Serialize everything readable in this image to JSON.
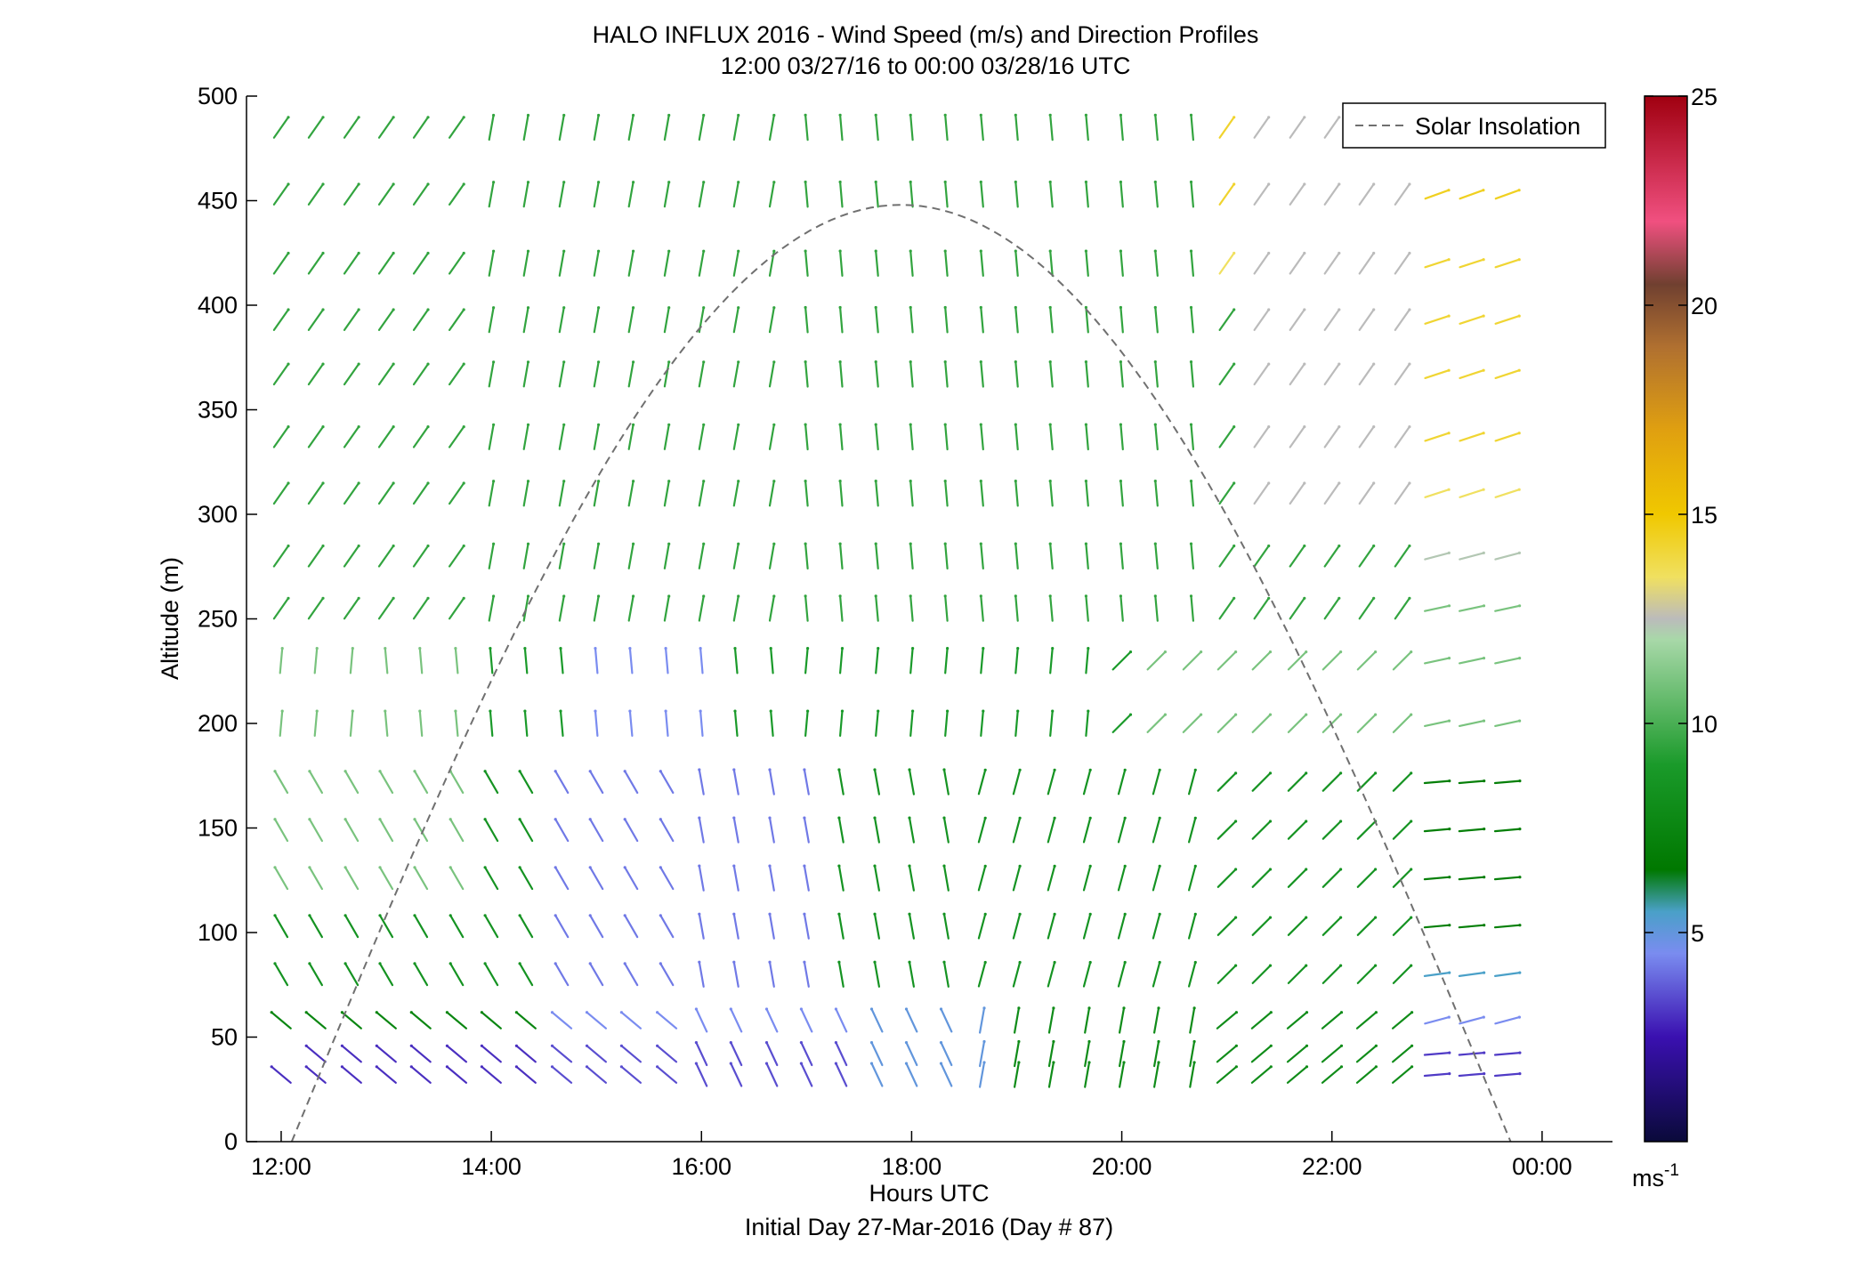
{
  "chart_data": {
    "type": "quiver",
    "title": "HALO INFLUX 2016 - Wind Speed (m/s) and Direction Profiles",
    "subtitle": "12:00 03/27/16 to 00:00 03/28/16  UTC",
    "xlabel": "Hours UTC",
    "xlabel_note": "Initial Day 27-Mar-2016 (Day # 87)",
    "ylabel": "Altitude (m)",
    "xlim": [
      11.67,
      24.67
    ],
    "ylim": [
      0,
      500
    ],
    "x_ticks": [
      12,
      14,
      16,
      18,
      20,
      22,
      24
    ],
    "x_tick_labels": [
      "12:00",
      "14:00",
      "16:00",
      "18:00",
      "20:00",
      "22:00",
      "00:00"
    ],
    "y_ticks": [
      0,
      50,
      100,
      150,
      200,
      250,
      300,
      350,
      400,
      450,
      500
    ],
    "y_tick_labels": [
      "0",
      "50",
      "100",
      "150",
      "200",
      "250",
      "300",
      "350",
      "400",
      "450",
      "500"
    ],
    "grid": false,
    "legend": {
      "entries": [
        "Solar Insolation"
      ],
      "placement": "top-right"
    },
    "colorbar": {
      "min": 0,
      "max": 25,
      "ticks": [
        5,
        10,
        15,
        20,
        25
      ],
      "tick_labels": [
        "5",
        "10",
        "15",
        "20",
        "25"
      ],
      "unit_base": "ms",
      "unit_exp": "-1",
      "stops": [
        {
          "v": 0,
          "c": "#0a0a3a"
        },
        {
          "v": 2.5,
          "c": "#3a10b0"
        },
        {
          "v": 4.5,
          "c": "#7a8cf0"
        },
        {
          "v": 5.5,
          "c": "#4aa0c8"
        },
        {
          "v": 6.5,
          "c": "#007800"
        },
        {
          "v": 9,
          "c": "#1a9a2a"
        },
        {
          "v": 12,
          "c": "#a8d8a8"
        },
        {
          "v": 12.5,
          "c": "#bbbbbb"
        },
        {
          "v": 13.5,
          "c": "#f0e060"
        },
        {
          "v": 15,
          "c": "#f0c800"
        },
        {
          "v": 17,
          "c": "#e0a010"
        },
        {
          "v": 19,
          "c": "#b07030"
        },
        {
          "v": 20.5,
          "c": "#704030"
        },
        {
          "v": 22,
          "c": "#f05080"
        },
        {
          "v": 25,
          "c": "#a00010"
        }
      ]
    },
    "solar_insolation": {
      "start_hour": 12.1,
      "end_hour": 23.7,
      "peak_hour": 17.9,
      "peak_altitude": 448,
      "color": "#707070"
    },
    "profile_altitudes_m": [
      32,
      42,
      58,
      80,
      103,
      126,
      149,
      172,
      200,
      230,
      255,
      280,
      310,
      337,
      367,
      393,
      420,
      453,
      485
    ],
    "profile_hours": [
      12.0,
      12.33,
      12.67,
      13.0,
      13.33,
      13.67,
      14.0,
      14.33,
      14.67,
      15.0,
      15.33,
      15.67,
      16.0,
      16.33,
      16.67,
      17.0,
      17.33,
      17.67,
      18.0,
      18.33,
      18.67,
      19.0,
      19.33,
      19.67,
      20.0,
      20.33,
      20.67,
      21.0,
      21.33,
      21.67,
      22.0,
      22.33,
      22.67,
      23.0,
      23.33,
      23.67
    ],
    "wind_speed_ms": [],
    "wind_direction_deg": []
  }
}
